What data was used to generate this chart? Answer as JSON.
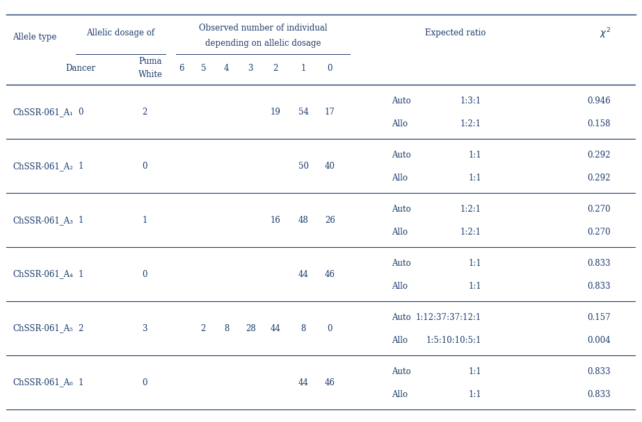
{
  "background_color": "#ffffff",
  "text_color": "#1a3a6b",
  "line_color": "#1a3a6b",
  "font_size": 8.5,
  "data_rows": [
    {
      "allele": "ChSSR-061_A₁",
      "dancer": "0",
      "puma": "2",
      "d6": "",
      "d5": "",
      "d4": "",
      "d3": "",
      "d2": "19",
      "d1": "54",
      "d0": "17",
      "type1": "Auto",
      "ratio1": "1:3:1",
      "chi1": "0.946",
      "type2": "Allo",
      "ratio2": "1:2:1",
      "chi2": "0.158"
    },
    {
      "allele": "ChSSR-061_A₂",
      "dancer": "1",
      "puma": "0",
      "d6": "",
      "d5": "",
      "d4": "",
      "d3": "",
      "d2": "",
      "d1": "50",
      "d0": "40",
      "type1": "Auto",
      "ratio1": "1:1",
      "chi1": "0.292",
      "type2": "Allo",
      "ratio2": "1:1",
      "chi2": "0.292"
    },
    {
      "allele": "ChSSR-061_A₃",
      "dancer": "1",
      "puma": "1",
      "d6": "",
      "d5": "",
      "d4": "",
      "d3": "",
      "d2": "16",
      "d1": "48",
      "d0": "26",
      "type1": "Auto",
      "ratio1": "1:2:1",
      "chi1": "0.270",
      "type2": "Allo",
      "ratio2": "1:2:1",
      "chi2": "0.270"
    },
    {
      "allele": "ChSSR-061_A₄",
      "dancer": "1",
      "puma": "0",
      "d6": "",
      "d5": "",
      "d4": "",
      "d3": "",
      "d2": "",
      "d1": "44",
      "d0": "46",
      "type1": "Auto",
      "ratio1": "1:1",
      "chi1": "0.833",
      "type2": "Allo",
      "ratio2": "1:1",
      "chi2": "0.833"
    },
    {
      "allele": "ChSSR-061_A₅",
      "dancer": "2",
      "puma": "3",
      "d6": "",
      "d5": "2",
      "d4": "8",
      "d3": "28",
      "d2": "44",
      "d1": "8",
      "d0": "0",
      "type1": "Auto",
      "ratio1": "1:12:37:37:12:1",
      "chi1": "0.157",
      "type2": "Allo",
      "ratio2": "1:5:10:10:5:1",
      "chi2": "0.004"
    },
    {
      "allele": "ChSSR-061_A₆",
      "dancer": "1",
      "puma": "0",
      "d6": "",
      "d5": "",
      "d4": "",
      "d3": "",
      "d2": "",
      "d1": "44",
      "d0": "46",
      "type1": "Auto",
      "ratio1": "1:1",
      "chi1": "0.833",
      "type2": "Allo",
      "ratio2": "1:1",
      "chi2": "0.833"
    }
  ]
}
